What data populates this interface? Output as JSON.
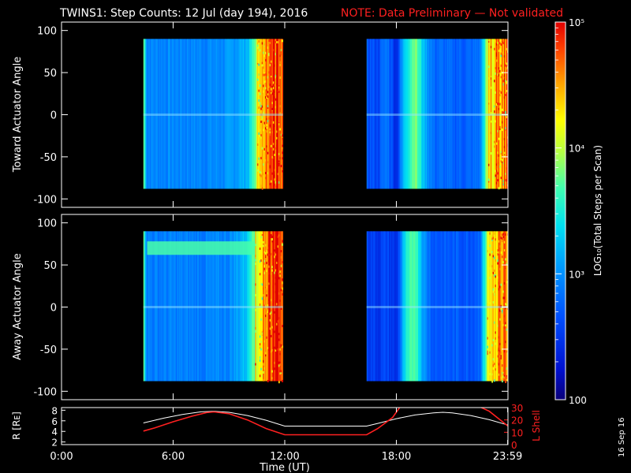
{
  "title": {
    "main": "TWINS1: Step Counts: 12 Jul (day 194), 2016",
    "note": "NOTE: Data Preliminary — Not validated",
    "main_color": "#ffffff",
    "note_color": "#ff2020"
  },
  "stamp": "16 Sep 16",
  "colorbar": {
    "label": "LOG₁₀(Total Steps per Scan)",
    "scale": "log",
    "range": [
      100,
      100000
    ],
    "ticks": [
      {
        "value": 100000,
        "label": "10⁵"
      },
      {
        "value": 10000,
        "label": "10⁴"
      },
      {
        "value": 1000,
        "label": "10³"
      },
      {
        "value": 100,
        "label": "100"
      }
    ]
  },
  "chart_data": [
    {
      "type": "heatmap",
      "name": "toward",
      "ylabel": "Toward Actuator Angle",
      "xlim": [
        0,
        24
      ],
      "ylim": [
        -110,
        110
      ],
      "yticks": [
        100,
        50,
        0,
        -50,
        -100
      ],
      "ytick_labels": [
        "100",
        "50",
        "0",
        "-50",
        "-100"
      ],
      "coverage_hours": [
        [
          4.4,
          11.9
        ],
        [
          16.4,
          24.0
        ]
      ],
      "angle_range": [
        -88,
        90
      ],
      "column_levels": {
        "time_hours": [
          4.4,
          4.6,
          5.0,
          6.0,
          7.0,
          8.0,
          9.0,
          9.5,
          10.0,
          10.3,
          10.6,
          11.0,
          11.4,
          11.9
        ],
        "log10_counts": [
          3.9,
          2.95,
          2.95,
          2.95,
          2.95,
          2.95,
          3.0,
          3.1,
          3.2,
          3.6,
          4.2,
          4.6,
          4.8,
          4.7
        ]
      },
      "column_levels_pass2": {
        "time_hours": [
          16.4,
          17.0,
          17.5,
          18.0,
          18.5,
          19.0,
          19.5,
          20.0,
          21.0,
          22.0,
          22.5,
          23.0,
          23.5,
          24.0
        ],
        "log10_counts": [
          2.7,
          2.6,
          2.9,
          2.4,
          3.4,
          3.9,
          3.2,
          2.8,
          2.75,
          2.75,
          2.85,
          4.3,
          4.6,
          4.6
        ]
      }
    },
    {
      "type": "heatmap",
      "name": "away",
      "ylabel": "Away Actuator Angle",
      "xlim": [
        0,
        24
      ],
      "ylim": [
        -110,
        110
      ],
      "yticks": [
        100,
        50,
        0,
        -50,
        -100
      ],
      "ytick_labels": [
        "100",
        "50",
        "0",
        "-50",
        "-100"
      ],
      "coverage_hours": [
        [
          4.4,
          11.9
        ],
        [
          16.4,
          24.0
        ]
      ],
      "angle_range": [
        -88,
        90
      ],
      "column_levels": {
        "time_hours": [
          4.4,
          4.6,
          5.0,
          6.0,
          7.0,
          8.0,
          9.0,
          9.5,
          10.0,
          10.3,
          10.6,
          11.0,
          11.4,
          11.9
        ],
        "log10_counts": [
          3.8,
          2.9,
          2.9,
          2.9,
          2.9,
          2.9,
          2.95,
          3.1,
          3.3,
          3.9,
          4.4,
          4.7,
          4.8,
          4.7
        ]
      },
      "column_levels_pass2": {
        "time_hours": [
          16.4,
          17.0,
          17.5,
          18.0,
          18.5,
          19.0,
          19.5,
          20.0,
          21.0,
          22.0,
          22.5,
          23.0,
          23.5,
          24.0
        ],
        "log10_counts": [
          2.6,
          2.5,
          2.6,
          2.4,
          3.4,
          3.8,
          3.0,
          2.7,
          2.7,
          2.7,
          2.8,
          4.3,
          4.6,
          4.6
        ]
      },
      "band": {
        "angle_range": [
          62,
          78
        ],
        "time_hours": [
          4.6,
          10.4
        ],
        "log10_counts": 3.7
      }
    },
    {
      "type": "line",
      "name": "ephemeris",
      "xlabel": "Time (UT)",
      "ylabel_left": "R [Rᴇ]",
      "ylabel_right": "L Shell",
      "xlim": [
        0,
        24
      ],
      "ylim_left": [
        1.5,
        8.5
      ],
      "ylim_right": [
        0,
        30
      ],
      "xticks": [
        0,
        6,
        12,
        18,
        23.983
      ],
      "xtick_labels": [
        "0:00",
        "6:00",
        "12:00",
        "18:00",
        "23:59"
      ],
      "yticks_left": [
        2,
        4,
        6,
        8
      ],
      "ytick_labels_left": [
        "2",
        "4",
        "6",
        "8"
      ],
      "yticks_right": [
        0,
        10,
        20,
        30
      ],
      "ytick_labels_right": [
        "0",
        "10",
        "20",
        "30"
      ],
      "series": [
        {
          "axis": "left",
          "color": "#ffffff",
          "x": [
            4.4,
            5.5,
            6.5,
            7.5,
            8.2,
            9.0,
            10.0,
            11.0,
            12.0,
            16.4,
            17.0,
            18.0,
            19.0,
            20.0,
            20.5,
            21.0,
            22.0,
            23.0,
            24.0
          ],
          "y": [
            5.6,
            6.5,
            7.2,
            7.7,
            7.8,
            7.6,
            7.0,
            6.1,
            5.0,
            5.0,
            5.5,
            6.4,
            7.1,
            7.5,
            7.6,
            7.5,
            7.0,
            6.2,
            5.2
          ]
        },
        {
          "axis": "right",
          "color": "#ff2020",
          "x": [
            4.4,
            5.0,
            6.0,
            7.0,
            7.8,
            8.2,
            9.0,
            10.0,
            11.0,
            12.0,
            16.4,
            17.0,
            17.8,
            18.2,
            22.5,
            23.0,
            23.5,
            24.0
          ],
          "y": [
            11.0,
            13.5,
            18.5,
            23.0,
            26.0,
            26.5,
            25.0,
            20.0,
            13.0,
            8.0,
            8.0,
            13.0,
            22.0,
            30.5,
            30.5,
            27.0,
            21.0,
            15.0
          ]
        }
      ]
    }
  ]
}
